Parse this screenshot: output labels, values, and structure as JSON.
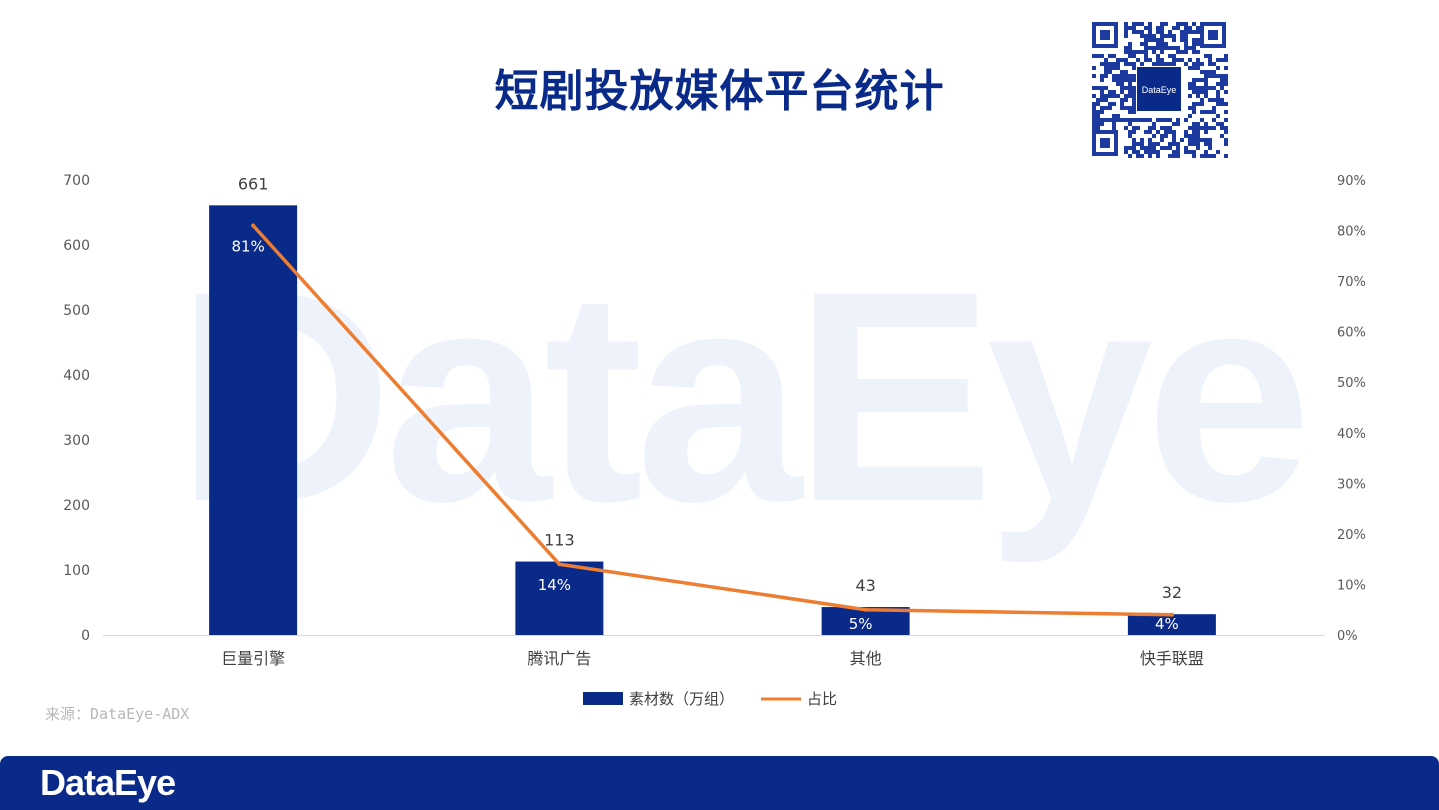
{
  "title": "短剧投放媒体平台统计",
  "source": "来源：DataEye-ADX",
  "footer": {
    "logo_text": "DataEye"
  },
  "watermark": {
    "text": "DataEye"
  },
  "qr": {
    "center_text": "DataEye"
  },
  "colors": {
    "bar": "#0a2a8a",
    "line": "#ed7d31",
    "title": "#0a2a8a",
    "footer": "#0a2a8a"
  },
  "chart_data": {
    "type": "bar",
    "title": "短剧投放媒体平台统计",
    "categories": [
      "巨量引擎",
      "腾讯广告",
      "其他",
      "快手联盟"
    ],
    "series": [
      {
        "name": "素材数（万组）",
        "type": "bar",
        "axis": "left",
        "values": [
          661,
          113,
          43,
          32
        ]
      },
      {
        "name": "占比",
        "type": "line",
        "axis": "right",
        "values": [
          0.81,
          0.14,
          0.05,
          0.04
        ],
        "labels": [
          "81%",
          "14%",
          "5%",
          "4%"
        ]
      }
    ],
    "ylim_left": [
      0,
      700
    ],
    "left_ticks": [
      "0",
      "100",
      "200",
      "300",
      "400",
      "500",
      "600",
      "700"
    ],
    "ylim_right": [
      0,
      0.9
    ],
    "right_ticks": [
      "0%",
      "10%",
      "20%",
      "30%",
      "40%",
      "50%",
      "60%",
      "70%",
      "80%",
      "90%"
    ],
    "grid": false,
    "legend_position": "bottom"
  }
}
